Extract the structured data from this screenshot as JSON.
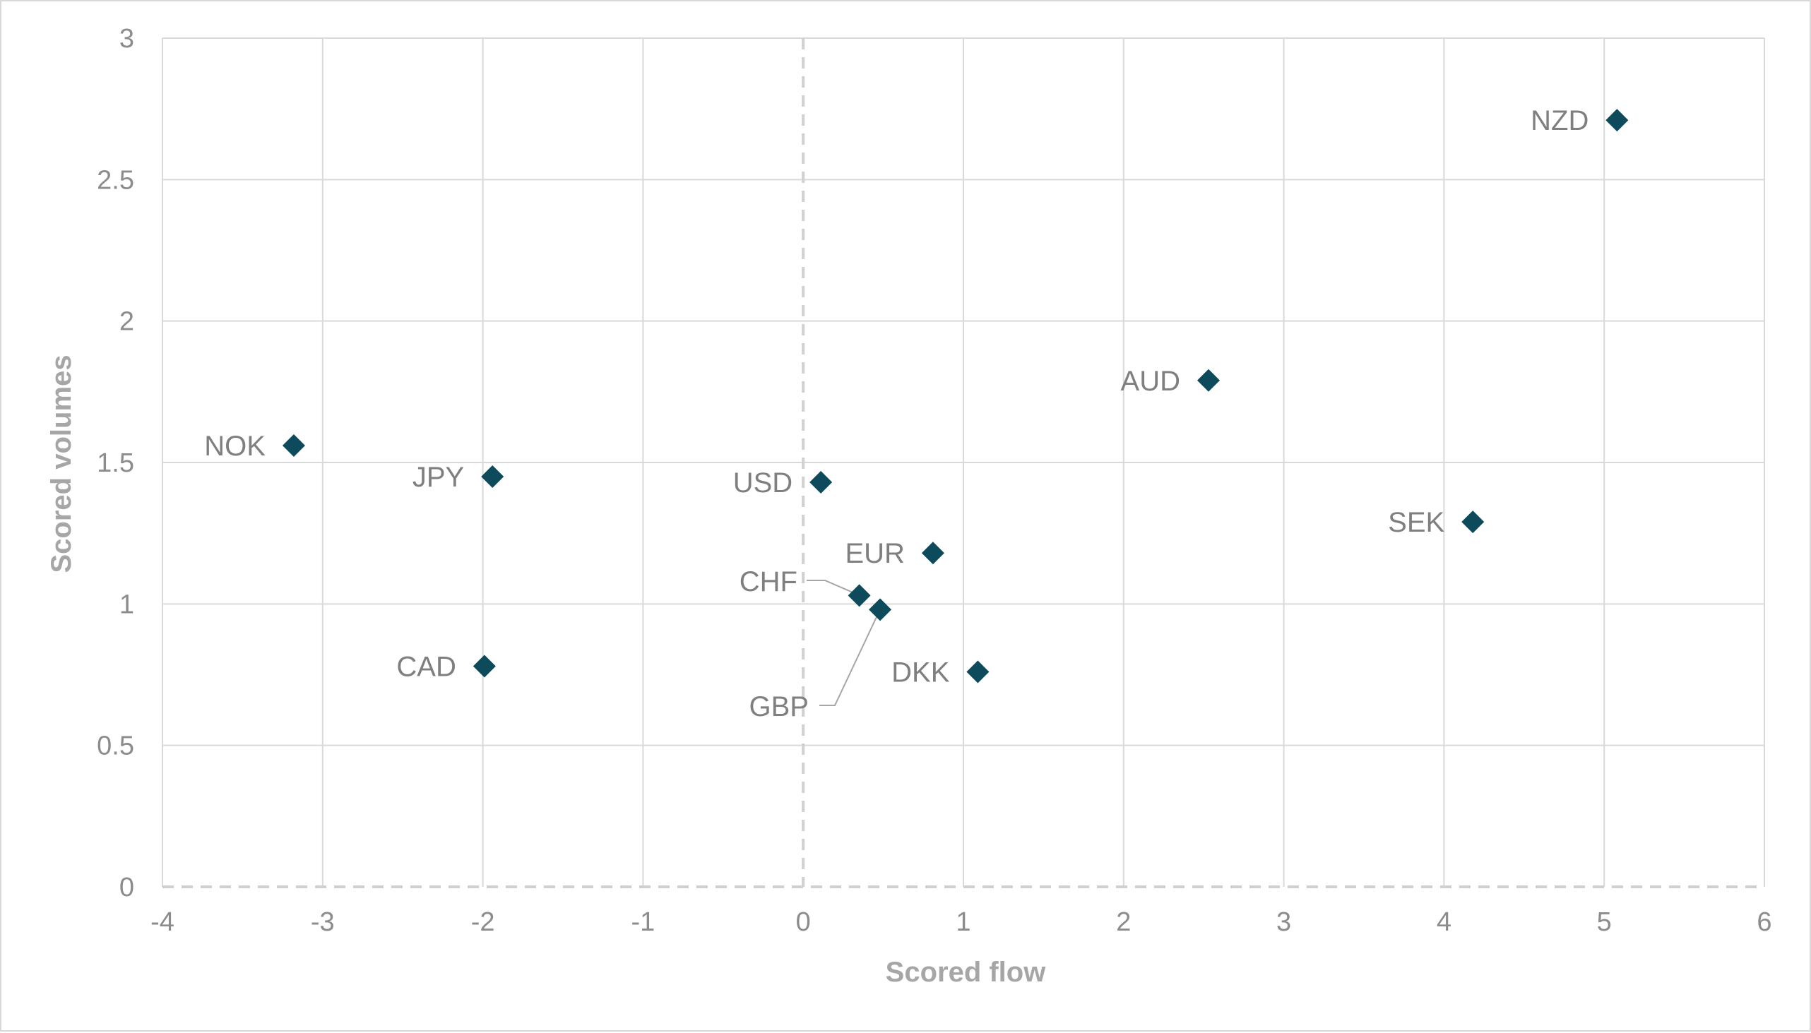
{
  "chart_data": {
    "type": "scatter",
    "xlabel": "Scored flow",
    "ylabel": "Scored volumes",
    "xlim": [
      -4,
      6
    ],
    "ylim": [
      0,
      3
    ],
    "x_ticks": [
      -4,
      -3,
      -2,
      -1,
      0,
      1,
      2,
      3,
      4,
      5,
      6
    ],
    "y_ticks": [
      0,
      0.5,
      1,
      1.5,
      2,
      2.5,
      3
    ],
    "x_tick_labels": [
      "-4",
      "-3",
      "-2",
      "-1",
      "0",
      "1",
      "2",
      "3",
      "4",
      "5",
      "6"
    ],
    "y_tick_labels": [
      "0",
      "0.5",
      "1",
      "1.5",
      "2",
      "2.5",
      "3"
    ],
    "grid": true,
    "reference_lines": [
      {
        "axis": "x",
        "value": 0,
        "style": "dashed"
      },
      {
        "axis": "y",
        "value": 0,
        "style": "dashed"
      }
    ],
    "marker": "diamond",
    "marker_color": "#0d4a5c",
    "points": [
      {
        "label": "NZD",
        "x": 5.08,
        "y": 2.71
      },
      {
        "label": "AUD",
        "x": 2.53,
        "y": 1.79
      },
      {
        "label": "NOK",
        "x": -3.18,
        "y": 1.56
      },
      {
        "label": "JPY",
        "x": -1.94,
        "y": 1.45
      },
      {
        "label": "USD",
        "x": 0.11,
        "y": 1.43
      },
      {
        "label": "SEK",
        "x": 4.18,
        "y": 1.29
      },
      {
        "label": "EUR",
        "x": 0.81,
        "y": 1.18
      },
      {
        "label": "CHF",
        "x": 0.35,
        "y": 1.03
      },
      {
        "label": "GBP",
        "x": 0.48,
        "y": 0.98
      },
      {
        "label": "CAD",
        "x": -1.99,
        "y": 0.78
      },
      {
        "label": "DKK",
        "x": 1.09,
        "y": 0.76
      }
    ]
  }
}
